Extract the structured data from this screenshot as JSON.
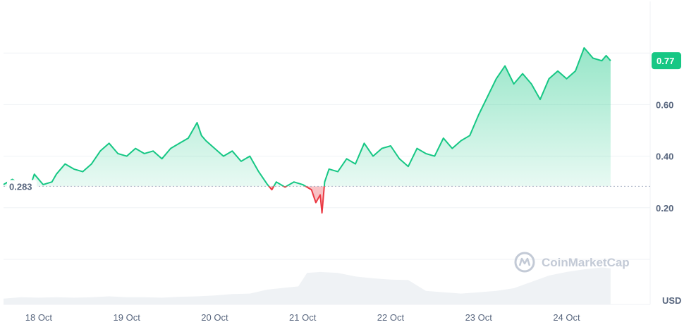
{
  "chart_data": {
    "type": "area",
    "unit_label": "USD",
    "watermark": "CoinMarketCap",
    "baseline_value": 0.283,
    "baseline_label": "0.283",
    "current_value": 0.77,
    "current_label": "0.77",
    "ylim": [
      0.0,
      1.0
    ],
    "y_ticks": [
      {
        "value": 0.2,
        "label": "0.20"
      },
      {
        "value": 0.4,
        "label": "0.40"
      },
      {
        "value": 0.6,
        "label": "0.60"
      }
    ],
    "x_range": [
      0,
      7.35
    ],
    "x_ticks": [
      {
        "value": 0.4,
        "label": "18 Oct"
      },
      {
        "value": 1.4,
        "label": "19 Oct"
      },
      {
        "value": 2.4,
        "label": "20 Oct"
      },
      {
        "value": 3.4,
        "label": "21 Oct"
      },
      {
        "value": 4.4,
        "label": "22 Oct"
      },
      {
        "value": 5.4,
        "label": "23 Oct"
      },
      {
        "value": 6.4,
        "label": "24 Oct"
      }
    ],
    "colors": {
      "up": "#16c784",
      "down": "#ea3943",
      "grid": "#eff2f5",
      "baseline": "#a6b0c3",
      "volume": "#eff2f5"
    },
    "price_series": {
      "x": [
        0.0,
        0.1,
        0.2,
        0.25,
        0.3,
        0.35,
        0.45,
        0.55,
        0.6,
        0.7,
        0.8,
        0.9,
        1.0,
        1.1,
        1.2,
        1.3,
        1.4,
        1.5,
        1.6,
        1.7,
        1.8,
        1.9,
        2.0,
        2.1,
        2.2,
        2.25,
        2.3,
        2.4,
        2.5,
        2.6,
        2.7,
        2.8,
        2.9,
        3.0,
        3.05,
        3.1,
        3.2,
        3.3,
        3.4,
        3.5,
        3.55,
        3.6,
        3.62,
        3.65,
        3.7,
        3.8,
        3.9,
        4.0,
        4.1,
        4.2,
        4.3,
        4.4,
        4.5,
        4.6,
        4.7,
        4.8,
        4.9,
        5.0,
        5.1,
        5.2,
        5.3,
        5.4,
        5.5,
        5.6,
        5.7,
        5.8,
        5.9,
        6.0,
        6.1,
        6.2,
        6.3,
        6.4,
        6.5,
        6.6,
        6.7,
        6.8,
        6.85,
        6.9
      ],
      "y": [
        0.29,
        0.31,
        0.29,
        0.27,
        0.28,
        0.33,
        0.29,
        0.3,
        0.33,
        0.37,
        0.35,
        0.34,
        0.37,
        0.42,
        0.45,
        0.41,
        0.4,
        0.43,
        0.41,
        0.42,
        0.39,
        0.43,
        0.45,
        0.47,
        0.53,
        0.48,
        0.46,
        0.43,
        0.4,
        0.42,
        0.38,
        0.4,
        0.34,
        0.29,
        0.27,
        0.3,
        0.28,
        0.3,
        0.29,
        0.27,
        0.22,
        0.25,
        0.18,
        0.3,
        0.35,
        0.34,
        0.39,
        0.37,
        0.45,
        0.4,
        0.43,
        0.44,
        0.39,
        0.36,
        0.43,
        0.41,
        0.4,
        0.47,
        0.43,
        0.46,
        0.48,
        0.56,
        0.63,
        0.7,
        0.75,
        0.68,
        0.72,
        0.68,
        0.62,
        0.7,
        0.73,
        0.7,
        0.73,
        0.82,
        0.78,
        0.77,
        0.79,
        0.77
      ]
    },
    "volume_series": {
      "x": [
        0.0,
        0.2,
        0.4,
        0.6,
        0.8,
        1.0,
        1.2,
        1.4,
        1.6,
        1.8,
        2.0,
        2.2,
        2.4,
        2.6,
        2.8,
        3.0,
        3.2,
        3.35,
        3.45,
        3.6,
        3.8,
        4.0,
        4.2,
        4.4,
        4.6,
        4.8,
        5.0,
        5.2,
        5.4,
        5.6,
        5.8,
        6.0,
        6.2,
        6.4,
        6.6,
        6.8,
        6.9
      ],
      "y": [
        0.13,
        0.16,
        0.15,
        0.16,
        0.15,
        0.16,
        0.18,
        0.16,
        0.16,
        0.15,
        0.17,
        0.18,
        0.2,
        0.23,
        0.24,
        0.33,
        0.37,
        0.4,
        0.7,
        0.72,
        0.7,
        0.62,
        0.58,
        0.55,
        0.54,
        0.3,
        0.27,
        0.24,
        0.27,
        0.3,
        0.36,
        0.5,
        0.64,
        0.72,
        0.78,
        0.82,
        0.8
      ]
    }
  }
}
